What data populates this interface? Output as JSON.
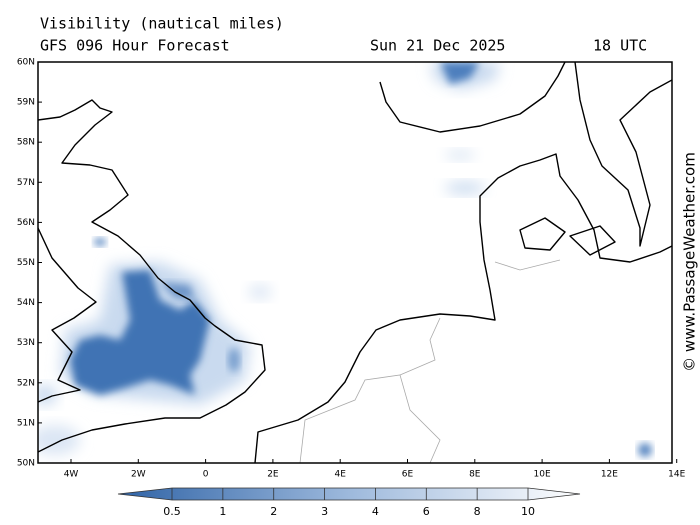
{
  "header": {
    "title": "Visibility (nautical miles)",
    "subtitle": "GFS 096 Hour Forecast",
    "date": "Sun 21 Dec 2025",
    "time": "18 UTC"
  },
  "map": {
    "lat_labels": [
      "50N",
      "51N",
      "52N",
      "53N",
      "54N",
      "55N",
      "56N",
      "57N",
      "58N",
      "59N",
      "60N"
    ],
    "lon_labels": [
      "4W",
      "2W",
      "0",
      "2E",
      "4E",
      "6E",
      "8E",
      "10E",
      "12E",
      "14E"
    ]
  },
  "legend": {
    "labels": [
      "0.5",
      "1",
      "2",
      "3",
      "4",
      "6",
      "8",
      "10"
    ]
  },
  "credit": "© www.PassageWeather.com"
}
